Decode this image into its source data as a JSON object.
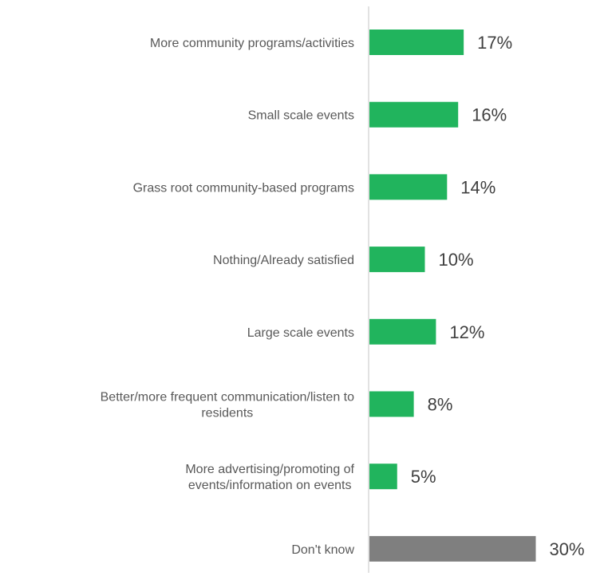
{
  "chart_data": {
    "type": "bar",
    "orientation": "horizontal",
    "categories": [
      [
        "More community programs/activities"
      ],
      [
        "Small scale events"
      ],
      [
        "Grass root community-based programs"
      ],
      [
        "Nothing/Already satisfied"
      ],
      [
        "Large scale events"
      ],
      [
        "Better/more frequent communication/listen to",
        "residents"
      ],
      [
        "More advertising/promoting of",
        "events/information on events"
      ],
      [
        "Don't know"
      ]
    ],
    "values": [
      17,
      16,
      14,
      10,
      12,
      8,
      5,
      30
    ],
    "value_labels": [
      "17%",
      "16%",
      "14%",
      "10%",
      "12%",
      "8%",
      "5%",
      "30%"
    ],
    "colors": [
      "#21b45d",
      "#21b45d",
      "#21b45d",
      "#21b45d",
      "#21b45d",
      "#21b45d",
      "#21b45d",
      "#7f7f7f"
    ],
    "xlim": [
      0,
      40
    ],
    "axis_color": "#d9d9d9",
    "grid": false,
    "legend": "none"
  }
}
